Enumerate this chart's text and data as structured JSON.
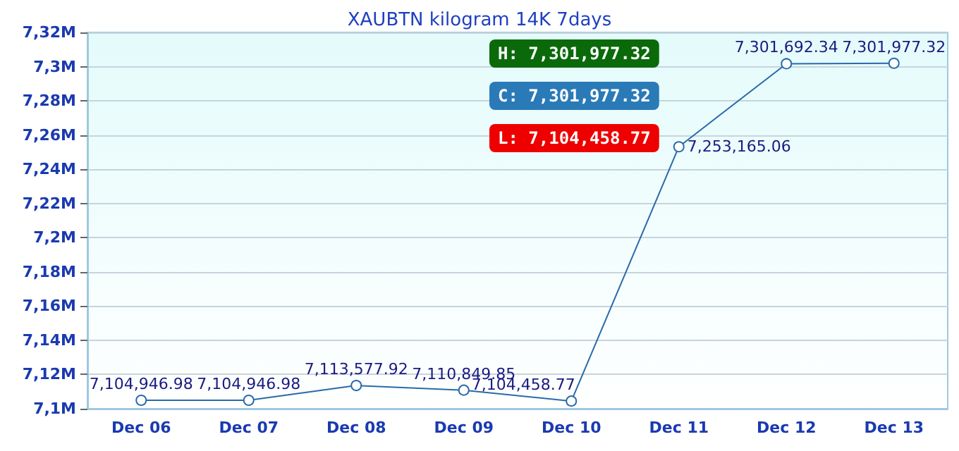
{
  "chart_data": {
    "type": "line",
    "title": "XAUBTN kilogram 14K 7days",
    "categories": [
      "Dec 06",
      "Dec 07",
      "Dec 08",
      "Dec 09",
      "Dec 10",
      "Dec 11",
      "Dec 12",
      "Dec 13"
    ],
    "series": [
      {
        "color": "#2a6aa8",
        "values": [
          7104946.98,
          7104946.98,
          7113577.92,
          7110849.85,
          7104458.77,
          7253165.06,
          7301692.34,
          7301977.32
        ],
        "value_labels": [
          "7,104,946.98",
          "7,104,946.98",
          "7,113,577.92",
          "7,110,849.85",
          "7,104,458.77",
          "7,253,165.06",
          "7,301,692.34",
          "7,301,977.32"
        ]
      }
    ],
    "ylim": [
      7100000,
      7320000
    ],
    "yticks": [
      {
        "value": 7100000,
        "label": "7,1M"
      },
      {
        "value": 7120000,
        "label": "7,12M"
      },
      {
        "value": 7140000,
        "label": "7,14M"
      },
      {
        "value": 7160000,
        "label": "7,16M"
      },
      {
        "value": 7180000,
        "label": "7,18M"
      },
      {
        "value": 7200000,
        "label": "7,2M"
      },
      {
        "value": 7220000,
        "label": "7,22M"
      },
      {
        "value": 7240000,
        "label": "7,24M"
      },
      {
        "value": 7260000,
        "label": "7,26M"
      },
      {
        "value": 7280000,
        "label": "7,28M"
      },
      {
        "value": 7300000,
        "label": "7,3M"
      },
      {
        "value": 7320000,
        "label": "7,32M"
      }
    ],
    "annotations": [
      "H: 7,301,977.32",
      "C: 7,301,977.32",
      "L: 7,104,458.77"
    ],
    "grid": "y",
    "marker": "circle"
  }
}
